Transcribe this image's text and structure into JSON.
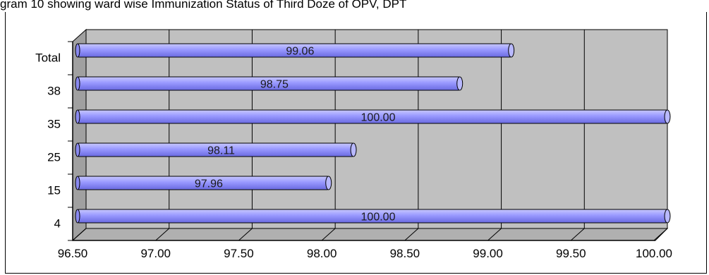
{
  "chart_data": {
    "type": "bar",
    "orientation": "horizontal",
    "title": "gram 10 showing ward wise Immunization Status of Third Doze of OPV, DPT",
    "categories": [
      "4",
      "15",
      "25",
      "35",
      "38",
      "Total"
    ],
    "values": [
      100.0,
      97.96,
      98.11,
      100.0,
      98.75,
      99.06
    ],
    "value_labels": [
      "100.00",
      "97.96",
      "98.11",
      "100.00",
      "98.75",
      "99.06"
    ],
    "xlim": [
      96.5,
      100.0
    ],
    "x_ticks": [
      96.5,
      97.0,
      97.5,
      98.0,
      98.5,
      99.0,
      99.5,
      100.0
    ],
    "x_tick_labels": [
      "96.50",
      "97.00",
      "97.50",
      "98.00",
      "98.50",
      "99.00",
      "99.50",
      "100.00"
    ],
    "grid": true,
    "legend": "none",
    "colors": {
      "bar": "#9999ff",
      "bar_highlight": "#c8c8ff",
      "bar_shadow": "#5a5ad0",
      "plot_background": "#c0c0c0",
      "wall_side": "#a0a0a0"
    }
  }
}
